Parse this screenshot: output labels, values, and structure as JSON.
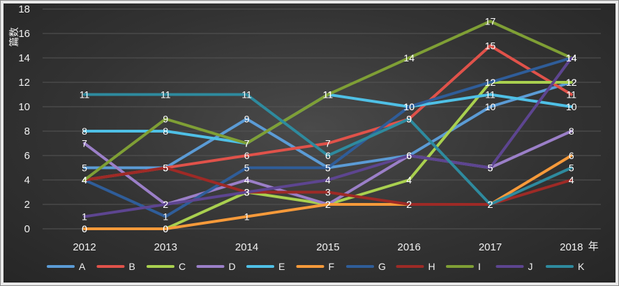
{
  "chart_data": {
    "type": "line",
    "title": "",
    "xlabel": "年",
    "ylabel": "篇数",
    "categories": [
      "2012",
      "2013",
      "2014",
      "2015",
      "2016",
      "2017",
      "2018"
    ],
    "ylim": [
      0,
      18
    ],
    "yticks": [
      0,
      2,
      4,
      6,
      8,
      10,
      12,
      14,
      16,
      18
    ],
    "grid": true,
    "legend_position": "bottom",
    "data_labels": true,
    "series": [
      {
        "name": "A",
        "color": "#5b9bd5",
        "values": [
          5,
          5,
          9,
          5,
          6,
          10,
          12
        ]
      },
      {
        "name": "B",
        "color": "#e0524a",
        "values": [
          4,
          5,
          6,
          7,
          9,
          15,
          11
        ]
      },
      {
        "name": "C",
        "color": "#a9d04f",
        "values": [
          0,
          0,
          3,
          2,
          4,
          12,
          12
        ]
      },
      {
        "name": "D",
        "color": "#9b7fc8",
        "values": [
          7,
          2,
          4,
          2,
          6,
          5,
          8
        ]
      },
      {
        "name": "E",
        "color": "#4fc0e6",
        "values": [
          8,
          8,
          7,
          11,
          10,
          11,
          10
        ]
      },
      {
        "name": "F",
        "color": "#f79a3a",
        "values": [
          0,
          0,
          1,
          2,
          2,
          2,
          6
        ]
      },
      {
        "name": "G",
        "color": "#2f5d99",
        "values": [
          4,
          1,
          5,
          5,
          10,
          12,
          14
        ]
      },
      {
        "name": "H",
        "color": "#9e2a26",
        "values": [
          4,
          5,
          3,
          3,
          2,
          2,
          4
        ]
      },
      {
        "name": "I",
        "color": "#7f9f35",
        "values": [
          4,
          9,
          7,
          11,
          14,
          17,
          14
        ]
      },
      {
        "name": "J",
        "color": "#5d4590",
        "values": [
          1,
          2,
          3,
          4,
          6,
          5,
          14
        ]
      },
      {
        "name": "K",
        "color": "#2e8a9e",
        "values": [
          11,
          11,
          11,
          6,
          9,
          2,
          5
        ]
      }
    ]
  }
}
